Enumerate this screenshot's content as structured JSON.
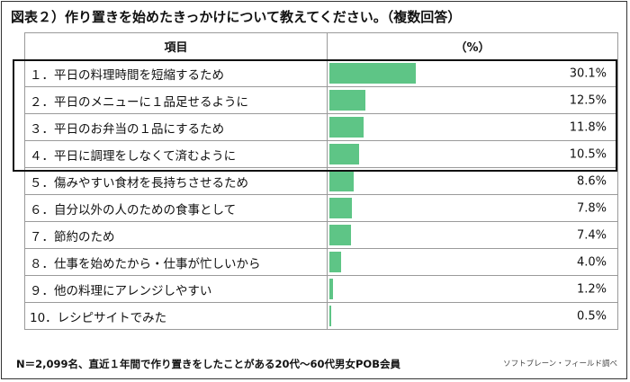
{
  "title": "図表２）作り置きを始めたきっかけについて教えてください。（複数回答）",
  "header": {
    "item": "項目",
    "unit": "（%）"
  },
  "chart_data": {
    "type": "bar",
    "title": "図表２）作り置きを始めたきっかけについて教えてください。（複数回答）",
    "categories": [
      "１．平日の料理時間を短縮するため",
      "２．平日のメニューに１品足せるように",
      "３．平日のお弁当の１品にするため",
      "４．平日に調理をしなくて済むように",
      "５．傷みやすい食材を長持ちさせるため",
      "６．自分以外の人のための食事として",
      "７．節約のため",
      "８．仕事を始めたから・仕事が忙しいから",
      "９．他の料理にアレンジしやすい",
      "10．レシピサイトでみた"
    ],
    "values": [
      30.1,
      12.5,
      11.8,
      10.5,
      8.6,
      7.8,
      7.4,
      4.0,
      1.2,
      0.5
    ],
    "value_labels": [
      "30.1%",
      "12.5%",
      "11.8%",
      "10.5%",
      "8.6%",
      "7.8%",
      "7.4%",
      "4.0%",
      "1.2%",
      "0.5%"
    ],
    "xlabel": "",
    "ylabel": "（%）",
    "xlim": [
      0,
      100
    ],
    "orientation": "horizontal",
    "bar_color": "#5ec586",
    "highlighted_rows": [
      1,
      2,
      3,
      4
    ],
    "grid": false
  },
  "footer": {
    "note": "N＝2,099名、直近１年間で作り置きをしたことがある20代〜60代男女POB会員",
    "source": "ソフトブレーン・フィールド調べ"
  },
  "colors": {
    "bar": "#5ec586",
    "border": "#9a9a9a",
    "highlight_border": "#111111"
  }
}
